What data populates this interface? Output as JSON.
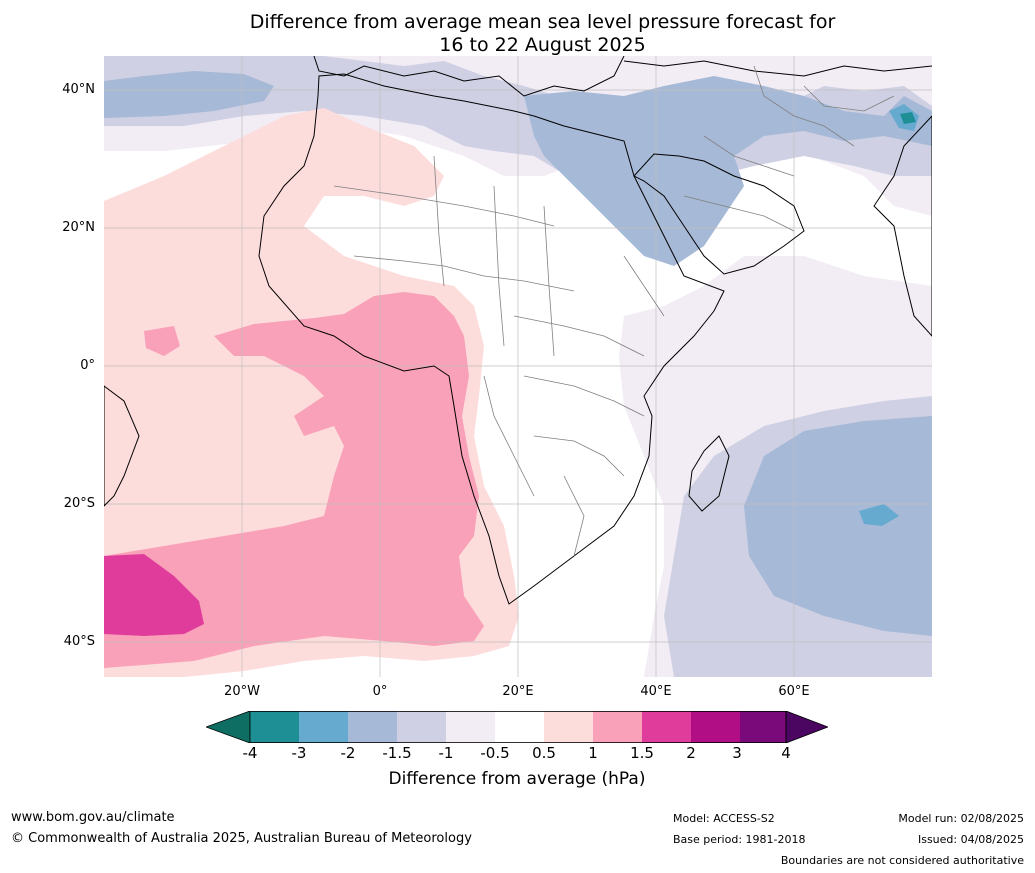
{
  "title": {
    "line1": "Difference from average mean sea level pressure forecast for",
    "line2": "16 to 22 August 2025"
  },
  "map": {
    "lat_labels": [
      "40°N",
      "20°N",
      "0°",
      "20°S",
      "40°S"
    ],
    "lon_labels": [
      "20°W",
      "0°",
      "20°E",
      "40°E",
      "60°E"
    ],
    "colors": {
      "neg4": "#0f6e63",
      "neg3": "#1f8f96",
      "neg2": "#66aad0",
      "neg15": "#a6b9d6",
      "neg1": "#cfd0e3",
      "neg05": "#f2ecf5",
      "zero": "#ffffff",
      "pos05": "#fddcdc",
      "pos1": "#f9a1b8",
      "pos15": "#df3c9b",
      "pos2": "#b10d85",
      "pos3": "#7a0a7a",
      "pos4": "#4a0660"
    }
  },
  "legend": {
    "ticks": [
      "-4",
      "-3",
      "-2",
      "-1.5",
      "-1",
      "-0.5",
      "0.5",
      "1",
      "1.5",
      "2",
      "3",
      "4"
    ],
    "title": "Difference from average (hPa)"
  },
  "footer": {
    "website": "www.bom.gov.au/climate",
    "copyright": "© Commonwealth of Australia 2025, Australian Bureau of Meteorology",
    "model": "Model: ACCESS-S2",
    "base_period": "Base period: 1981-2018",
    "model_run": "Model run: 02/08/2025",
    "issued": "Issued: 04/08/2025",
    "disclaimer": "Boundaries are not considered authoritative"
  }
}
